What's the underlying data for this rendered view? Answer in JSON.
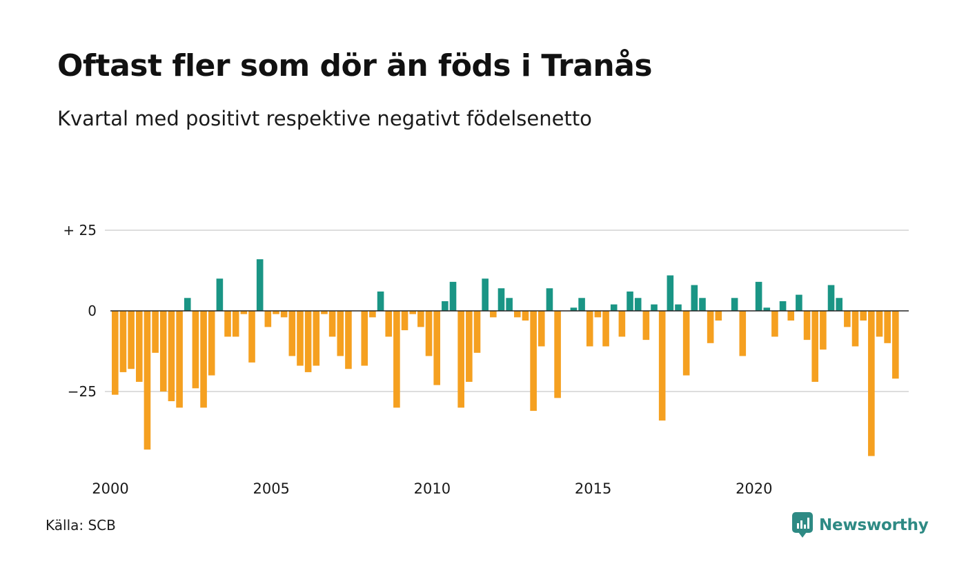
{
  "header": {
    "title": "Oftast fler som dör än föds i Tranås",
    "subtitle": "Kvartal med positivt respektive negativt födelsenetto"
  },
  "footer": {
    "source": "Källa: SCB",
    "brand": "Newsworthy"
  },
  "colors": {
    "positive": "#1a9585",
    "negative": "#f5a020",
    "grid": "#dddddd",
    "brand": "#2e8a84"
  },
  "chart_data": {
    "type": "bar",
    "title": "Oftast fler som dör än föds i Tranås",
    "subtitle": "Kvartal med positivt respektive negativt födelsenetto",
    "xlabel": "",
    "ylabel": "",
    "x_start": "2000 Q1",
    "ylim": [
      -47,
      28
    ],
    "y_ticks": [
      {
        "value": 25,
        "label": "+ 25"
      },
      {
        "value": 0,
        "label": "0"
      },
      {
        "value": -25,
        "label": "−25"
      }
    ],
    "x_ticks": [
      "2000",
      "2005",
      "2010",
      "2015",
      "2020"
    ],
    "grid": true,
    "values": [
      -26,
      -19,
      -18,
      -22,
      -43,
      -13,
      -25,
      -28,
      -30,
      4,
      -24,
      -30,
      -20,
      10,
      -8,
      -8,
      -1,
      -16,
      16,
      -5,
      -1,
      -2,
      -14,
      -17,
      -19,
      -17,
      -1,
      -8,
      -14,
      -18,
      0,
      -17,
      -2,
      6,
      -8,
      -30,
      -6,
      -1,
      -5,
      -14,
      -23,
      3,
      9,
      -30,
      -22,
      -13,
      10,
      -2,
      7,
      4,
      -2,
      -3,
      -31,
      -11,
      7,
      -27,
      0,
      1,
      4,
      -11,
      -2,
      -11,
      2,
      -8,
      6,
      4,
      -9,
      2,
      -34,
      11,
      2,
      -20,
      8,
      4,
      -10,
      -3,
      0,
      4,
      -14,
      0,
      9,
      1,
      -8,
      3,
      -3,
      5,
      -9,
      -22,
      -12,
      8,
      4,
      -5,
      -11,
      -3,
      -45,
      -8,
      -10,
      -21
    ]
  }
}
